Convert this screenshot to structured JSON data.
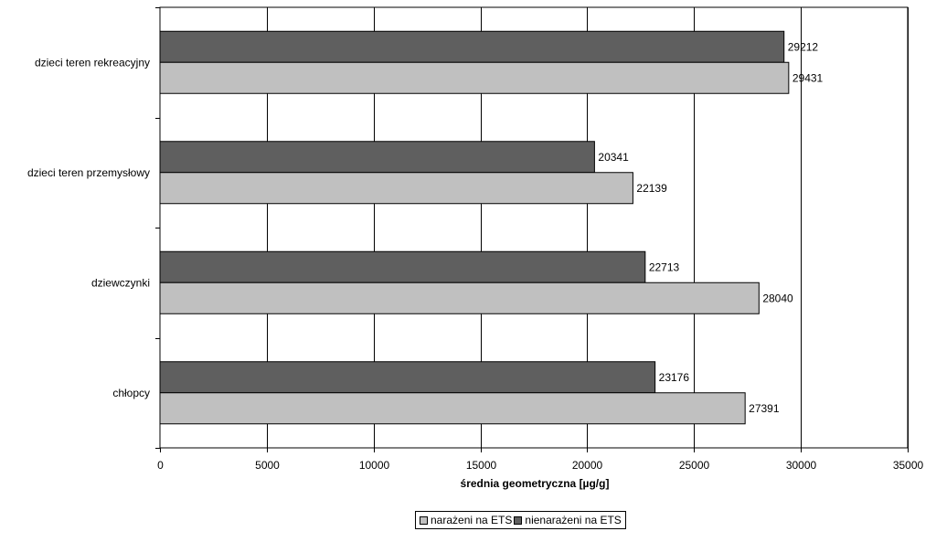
{
  "colors": {
    "exposed": "#c0c0c0",
    "unexposed": "#5f5f5f",
    "grid": "#000000"
  },
  "legend": {
    "items": [
      {
        "label": "narażeni na ETS",
        "color": "#c0c0c0"
      },
      {
        "label": "nienarażeni na ETS",
        "color": "#5f5f5f"
      }
    ]
  },
  "chart_data": {
    "type": "bar",
    "orientation": "horizontal",
    "categories": [
      "dzieci teren rekreacyjny",
      "dzieci teren przemysłowy",
      "dziewczynki",
      "chłopcy"
    ],
    "series": [
      {
        "name": "nienarażeni na ETS",
        "values": [
          29212,
          20341,
          22713,
          23176
        ]
      },
      {
        "name": "narażeni na ETS",
        "values": [
          29431,
          22139,
          28040,
          27391
        ]
      }
    ],
    "xlabel": "średnia geometryczna [µg/g]",
    "ylabel": "",
    "xlim": [
      0,
      35000
    ],
    "xticks": [
      0,
      5000,
      10000,
      15000,
      20000,
      25000,
      30000,
      35000
    ],
    "grid": true,
    "legend_position": "bottom"
  }
}
